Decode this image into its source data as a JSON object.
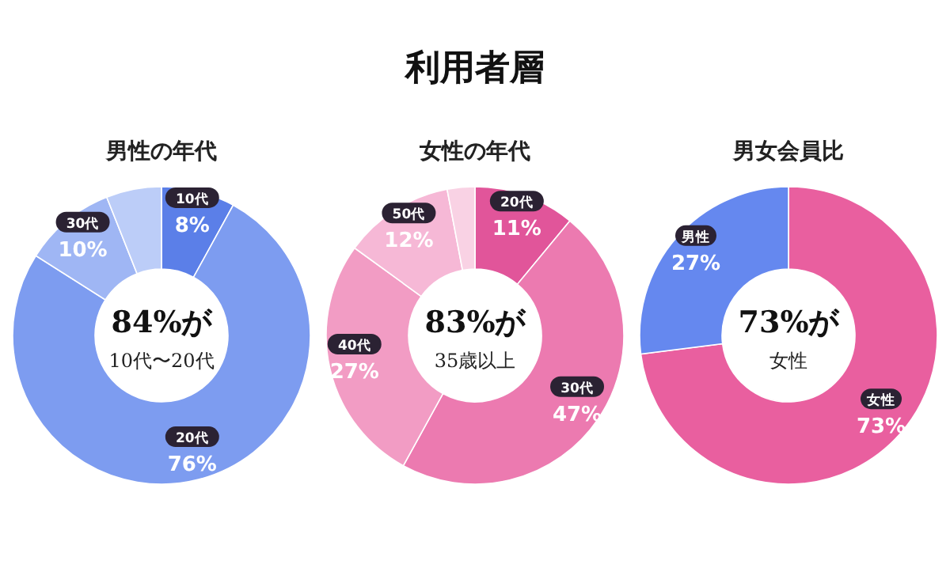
{
  "chart_data": [
    {
      "type": "other",
      "title": "利用者層"
    },
    {
      "type": "donut",
      "title": "男性の年代",
      "categories": [
        "10代",
        "20代",
        "30代",
        null
      ],
      "values": [
        8,
        76,
        10,
        6
      ],
      "colors": [
        "#5b7fe8",
        "#7d9cf0",
        "#9fb6f4",
        "#bccdf8"
      ],
      "value_labels": [
        "8%",
        "76%",
        "10%",
        null
      ],
      "annotations": [
        "84%が",
        "10代〜20代"
      ]
    },
    {
      "type": "donut",
      "title": "女性の年代",
      "categories": [
        "20代",
        "30代",
        "40代",
        "50代",
        null
      ],
      "values": [
        11,
        47,
        27,
        12,
        3
      ],
      "colors": [
        "#e1559a",
        "#ec7ab0",
        "#f29cc4",
        "#f6b8d6",
        "#f9d2e4"
      ],
      "value_labels": [
        "11%",
        "47%",
        "27%",
        "12%",
        null
      ],
      "annotations": [
        "83%が",
        "35歳以上"
      ]
    },
    {
      "type": "donut",
      "title": "男女会員比",
      "categories": [
        "女性",
        "男性"
      ],
      "values": [
        73,
        27
      ],
      "colors": [
        "#e95f9f",
        "#6588ef"
      ],
      "value_labels": [
        "73%",
        "27%"
      ],
      "annotations": [
        "73%が",
        "女性"
      ]
    }
  ]
}
